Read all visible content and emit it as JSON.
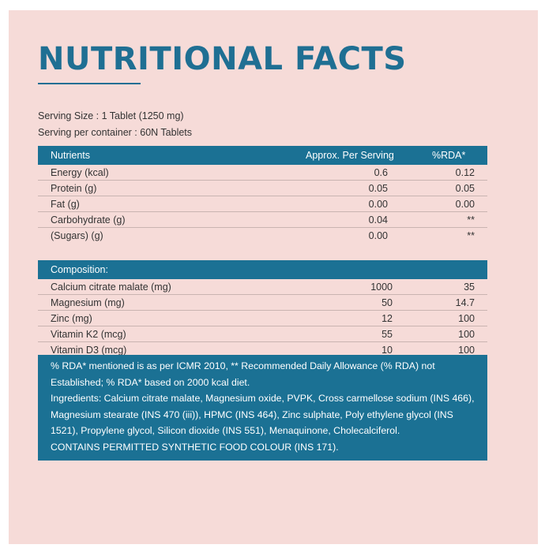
{
  "title": "NUTRITIONAL FACTS",
  "serving_size": "Serving Size : 1 Tablet (1250 mg)",
  "serving_per_container": "Serving per container : 60N  Tablets",
  "nutrients_table": {
    "headers": [
      "Nutrients",
      "Approx. Per Serving",
      "%RDA*"
    ],
    "rows": [
      {
        "name": "Energy (kcal)",
        "value": "0.6",
        "rda": "0.12"
      },
      {
        "name": "Protein (g)",
        "value": "0.05",
        "rda": "0.05"
      },
      {
        "name": "Fat (g)",
        "value": "0.00",
        "rda": "0.00"
      },
      {
        "name": "Carbohydrate (g)",
        "value": "0.04",
        "rda": "**"
      },
      {
        "name": "(Sugars) (g)",
        "value": "0.00",
        "rda": "**"
      }
    ]
  },
  "composition_table": {
    "header": "Composition:",
    "rows": [
      {
        "name": "Calcium citrate malate (mg)",
        "value": "1000",
        "rda": "35"
      },
      {
        "name": "Magnesium (mg)",
        "value": "50",
        "rda": "14.7"
      },
      {
        "name": "Zinc (mg)",
        "value": "12",
        "rda": "100"
      },
      {
        "name": "Vitamin K2 (mcg)",
        "value": "55",
        "rda": "100"
      },
      {
        "name": "Vitamin D3 (mcg)",
        "value": "10",
        "rda": "100"
      }
    ]
  },
  "notes": {
    "rda_note_1": "% RDA* mentioned is as per ICMR 2010, ** Recommended Daily Allowance (% RDA) not",
    "rda_note_2": "Established; % RDA* based on 2000 kcal diet.",
    "ingredients_1": "Ingredients: Calcium citrate malate, Magnesium oxide, PVPK, Cross carmellose sodium (INS 466),",
    "ingredients_2": "Magnesium stearate (INS 470 (iii)), HPMC (INS 464), Zinc sulphate, Poly ethylene glycol (INS",
    "ingredients_3": "1521), Propylene glycol, Silicon dioxide (INS 551), Menaquinone, Cholecalciferol.",
    "colour_note": "CONTAINS PERMITTED SYNTHETIC FOOD COLOUR (INS 171)."
  },
  "colors": {
    "accent": "#1b7194",
    "background": "#f6dbd8"
  }
}
